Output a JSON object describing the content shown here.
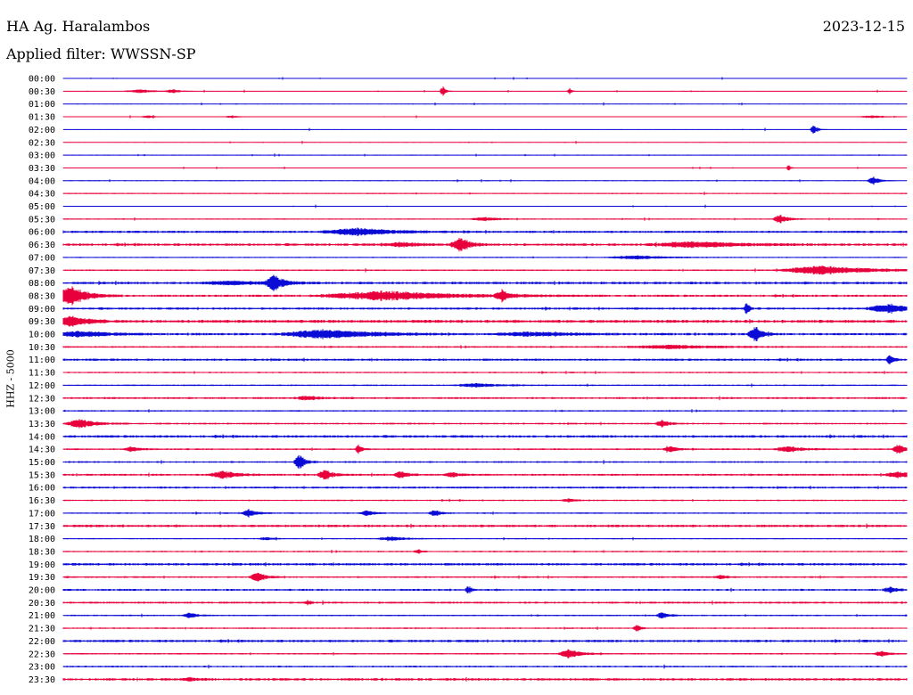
{
  "header": {
    "station": "HA Ag. Haralambos",
    "filter": "Applied filter: WWSSN-SP",
    "date": "2023-12-15"
  },
  "axis": {
    "ylabel": "HHZ - 5000"
  },
  "colors": {
    "blue": "#0b0bd6",
    "red": "#e8003c",
    "text": "#000000"
  },
  "chart_data": {
    "type": "line",
    "title": "HA Ag. Haralambos",
    "subtitle": "Applied filter: WWSSN-SP",
    "date": "2023-12-15",
    "ylabel": "HHZ - 5000",
    "xlabel": "",
    "row_labels": [
      "00:00",
      "00:30",
      "01:00",
      "01:30",
      "02:00",
      "02:30",
      "03:00",
      "03:30",
      "04:00",
      "04:30",
      "05:00",
      "05:30",
      "06:00",
      "06:30",
      "07:00",
      "07:30",
      "08:00",
      "08:30",
      "09:00",
      "09:30",
      "10:00",
      "10:30",
      "11:00",
      "11:30",
      "12:00",
      "12:30",
      "13:00",
      "13:30",
      "14:00",
      "14:30",
      "15:00",
      "15:30",
      "16:00",
      "16:30",
      "17:00",
      "17:30",
      "18:00",
      "18:30",
      "19:00",
      "19:30",
      "20:00",
      "20:30",
      "21:00",
      "21:30",
      "22:00",
      "22:30",
      "23:00",
      "23:30"
    ],
    "row_color_pattern": [
      "blue",
      "red"
    ],
    "row_noise_level": [
      0.3,
      0.3,
      0.3,
      0.3,
      0.3,
      0.3,
      0.4,
      0.3,
      0.4,
      0.5,
      0.3,
      0.5,
      0.9,
      1.0,
      0.5,
      0.6,
      1.0,
      0.9,
      0.9,
      1.2,
      1.0,
      0.7,
      0.9,
      0.6,
      0.6,
      0.8,
      0.6,
      0.7,
      1.0,
      0.7,
      0.7,
      0.8,
      0.8,
      0.6,
      0.6,
      1.0,
      0.5,
      0.6,
      1.0,
      0.7,
      0.8,
      0.8,
      0.6,
      0.6,
      1.0,
      0.6,
      0.7,
      1.0
    ],
    "events": [
      {
        "row": 1,
        "pos": 0.09,
        "amp": 2,
        "dur": 0.02
      },
      {
        "row": 1,
        "pos": 0.13,
        "amp": 2,
        "dur": 0.01
      },
      {
        "row": 1,
        "pos": 0.45,
        "amp": 6,
        "dur": 0.004
      },
      {
        "row": 1,
        "pos": 0.6,
        "amp": 4,
        "dur": 0.003
      },
      {
        "row": 3,
        "pos": 0.1,
        "amp": 1.5,
        "dur": 0.01
      },
      {
        "row": 3,
        "pos": 0.2,
        "amp": 1.5,
        "dur": 0.01
      },
      {
        "row": 3,
        "pos": 0.96,
        "amp": 1.5,
        "dur": 0.02
      },
      {
        "row": 4,
        "pos": 0.89,
        "amp": 6,
        "dur": 0.005
      },
      {
        "row": 7,
        "pos": 0.86,
        "amp": 4,
        "dur": 0.003
      },
      {
        "row": 8,
        "pos": 0.96,
        "amp": 5,
        "dur": 0.008
      },
      {
        "row": 11,
        "pos": 0.5,
        "amp": 2,
        "dur": 0.02
      },
      {
        "row": 11,
        "pos": 0.85,
        "amp": 5,
        "dur": 0.01
      },
      {
        "row": 12,
        "pos": 0.35,
        "amp": 4,
        "dur": 0.05
      },
      {
        "row": 13,
        "pos": 0.47,
        "amp": 9,
        "dur": 0.012
      },
      {
        "row": 13,
        "pos": 0.4,
        "amp": 2,
        "dur": 0.03
      },
      {
        "row": 13,
        "pos": 0.75,
        "amp": 3,
        "dur": 0.06
      },
      {
        "row": 14,
        "pos": 0.68,
        "amp": 2,
        "dur": 0.04
      },
      {
        "row": 15,
        "pos": 0.9,
        "amp": 5,
        "dur": 0.06
      },
      {
        "row": 16,
        "pos": 0.25,
        "amp": 9,
        "dur": 0.012
      },
      {
        "row": 16,
        "pos": 0.2,
        "amp": 2,
        "dur": 0.05
      },
      {
        "row": 17,
        "pos": 0.01,
        "amp": 11,
        "dur": 0.02
      },
      {
        "row": 17,
        "pos": 0.38,
        "amp": 5,
        "dur": 0.09
      },
      {
        "row": 17,
        "pos": 0.52,
        "amp": 6,
        "dur": 0.01
      },
      {
        "row": 18,
        "pos": 0.81,
        "amp": 10,
        "dur": 0.003
      },
      {
        "row": 18,
        "pos": 0.98,
        "amp": 5,
        "dur": 0.03
      },
      {
        "row": 19,
        "pos": 0.01,
        "amp": 6,
        "dur": 0.02
      },
      {
        "row": 20,
        "pos": 0.02,
        "amp": 3,
        "dur": 0.04
      },
      {
        "row": 20,
        "pos": 0.31,
        "amp": 5,
        "dur": 0.06
      },
      {
        "row": 20,
        "pos": 0.55,
        "amp": 2,
        "dur": 0.05
      },
      {
        "row": 20,
        "pos": 0.82,
        "amp": 8,
        "dur": 0.01
      },
      {
        "row": 21,
        "pos": 0.72,
        "amp": 2,
        "dur": 0.06
      },
      {
        "row": 22,
        "pos": 0.98,
        "amp": 5,
        "dur": 0.005
      },
      {
        "row": 24,
        "pos": 0.49,
        "amp": 2,
        "dur": 0.03
      },
      {
        "row": 25,
        "pos": 0.29,
        "amp": 2,
        "dur": 0.02
      },
      {
        "row": 27,
        "pos": 0.02,
        "amp": 5,
        "dur": 0.02
      },
      {
        "row": 27,
        "pos": 0.71,
        "amp": 4,
        "dur": 0.01
      },
      {
        "row": 29,
        "pos": 0.08,
        "amp": 3,
        "dur": 0.01
      },
      {
        "row": 29,
        "pos": 0.35,
        "amp": 5,
        "dur": 0.005
      },
      {
        "row": 29,
        "pos": 0.72,
        "amp": 3,
        "dur": 0.01
      },
      {
        "row": 29,
        "pos": 0.86,
        "amp": 3,
        "dur": 0.02
      },
      {
        "row": 29,
        "pos": 0.99,
        "amp": 6,
        "dur": 0.008
      },
      {
        "row": 30,
        "pos": 0.28,
        "amp": 8,
        "dur": 0.008
      },
      {
        "row": 31,
        "pos": 0.19,
        "amp": 4,
        "dur": 0.02
      },
      {
        "row": 31,
        "pos": 0.31,
        "amp": 6,
        "dur": 0.01
      },
      {
        "row": 31,
        "pos": 0.4,
        "amp": 4,
        "dur": 0.01
      },
      {
        "row": 31,
        "pos": 0.46,
        "amp": 3,
        "dur": 0.01
      },
      {
        "row": 31,
        "pos": 0.99,
        "amp": 3,
        "dur": 0.02
      },
      {
        "row": 33,
        "pos": 0.6,
        "amp": 2,
        "dur": 0.01
      },
      {
        "row": 34,
        "pos": 0.22,
        "amp": 5,
        "dur": 0.01
      },
      {
        "row": 34,
        "pos": 0.36,
        "amp": 3,
        "dur": 0.01
      },
      {
        "row": 34,
        "pos": 0.44,
        "amp": 4,
        "dur": 0.008
      },
      {
        "row": 36,
        "pos": 0.24,
        "amp": 2,
        "dur": 0.01
      },
      {
        "row": 36,
        "pos": 0.39,
        "amp": 2,
        "dur": 0.02
      },
      {
        "row": 37,
        "pos": 0.42,
        "amp": 2,
        "dur": 0.005
      },
      {
        "row": 39,
        "pos": 0.23,
        "amp": 6,
        "dur": 0.01
      },
      {
        "row": 39,
        "pos": 0.78,
        "amp": 2,
        "dur": 0.01
      },
      {
        "row": 40,
        "pos": 0.48,
        "amp": 5,
        "dur": 0.004
      },
      {
        "row": 40,
        "pos": 0.98,
        "amp": 3,
        "dur": 0.01
      },
      {
        "row": 41,
        "pos": 0.29,
        "amp": 3,
        "dur": 0.004
      },
      {
        "row": 42,
        "pos": 0.15,
        "amp": 3,
        "dur": 0.01
      },
      {
        "row": 42,
        "pos": 0.71,
        "amp": 4,
        "dur": 0.008
      },
      {
        "row": 43,
        "pos": 0.68,
        "amp": 4,
        "dur": 0.005
      },
      {
        "row": 45,
        "pos": 0.6,
        "amp": 5,
        "dur": 0.015
      },
      {
        "row": 45,
        "pos": 0.97,
        "amp": 3,
        "dur": 0.01
      },
      {
        "row": 47,
        "pos": 0.15,
        "amp": 2,
        "dur": 0.01
      }
    ]
  }
}
